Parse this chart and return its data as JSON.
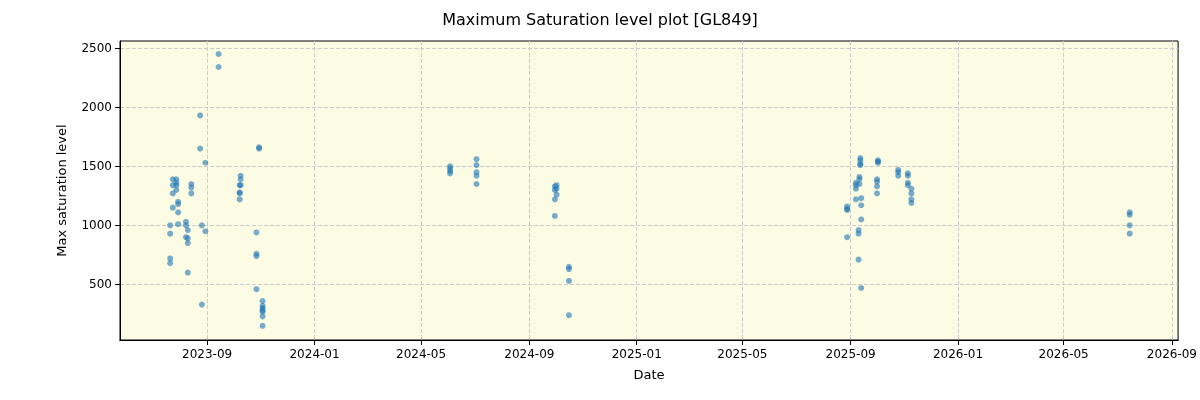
{
  "chart_data": {
    "type": "scatter",
    "title": "Maximum Saturation level plot [GL849]",
    "xlabel": "Date",
    "ylabel": "Max saturation level",
    "series": [
      {
        "color": "#1f77b4",
        "x": [
          "2023-09-14",
          "2023-09-14",
          "2023-08-24",
          "2023-08-24",
          "2023-08-30",
          "2023-07-24",
          "2023-07-24",
          "2023-07-24",
          "2023-07-24",
          "2023-07-28",
          "2023-07-28",
          "2023-07-28",
          "2023-07-28",
          "2023-08-14",
          "2023-08-14",
          "2023-08-14",
          "2023-07-30",
          "2023-07-30",
          "2023-07-30",
          "2023-07-30",
          "2023-07-21",
          "2023-07-21",
          "2023-07-21",
          "2023-07-21",
          "2023-08-08",
          "2023-08-08",
          "2023-08-08",
          "2023-08-10",
          "2023-08-10",
          "2023-08-10",
          "2023-08-10",
          "2023-08-26",
          "2023-08-26",
          "2023-08-30",
          "2023-10-30",
          "2023-10-30",
          "2023-10-09",
          "2023-10-09",
          "2023-10-09",
          "2023-10-08",
          "2023-10-08",
          "2023-10-08",
          "2023-10-08",
          "2023-10-27",
          "2023-10-27",
          "2023-10-27",
          "2023-10-27",
          "2023-11-03",
          "2023-11-03",
          "2023-11-03",
          "2023-11-03",
          "2023-11-03",
          "2023-11-03",
          "2023-11-03",
          "2024-06-03",
          "2024-06-03",
          "2024-06-03",
          "2024-06-03",
          "2024-07-03",
          "2024-07-03",
          "2024-07-03",
          "2024-07-03",
          "2024-07-03",
          "2024-10-02",
          "2024-09-30",
          "2024-10-02",
          "2024-09-30",
          "2024-10-02",
          "2024-09-30",
          "2024-09-30",
          "2024-10-16",
          "2024-10-16",
          "2024-10-16",
          "2024-10-16",
          "2025-09-12",
          "2025-09-12",
          "2025-09-12",
          "2025-09-12",
          "2025-10-02",
          "2025-10-02",
          "2025-10-02",
          "2025-09-11",
          "2025-09-11",
          "2025-09-07",
          "2025-09-11",
          "2025-09-07",
          "2025-09-07",
          "2025-09-07",
          "2025-09-13",
          "2025-09-13",
          "2025-09-13",
          "2025-08-28",
          "2025-08-28",
          "2025-08-28",
          "2025-08-28",
          "2025-09-10",
          "2025-09-10",
          "2025-09-10",
          "2025-09-13",
          "2025-10-01",
          "2025-10-01",
          "2025-10-01",
          "2025-10-01",
          "2025-10-25",
          "2025-10-25",
          "2025-10-25",
          "2025-11-05",
          "2025-11-05",
          "2025-11-05",
          "2025-11-05",
          "2025-11-09",
          "2025-11-09",
          "2025-11-09",
          "2025-11-09",
          "2026-07-15",
          "2026-07-15",
          "2026-07-15",
          "2026-07-15"
        ],
        "values": [
          2450,
          2340,
          1930,
          1650,
          1530,
          1390,
          1340,
          1270,
          1150,
          1390,
          1360,
          1340,
          1300,
          1350,
          1320,
          1270,
          1200,
          1180,
          1110,
          1010,
          1000,
          930,
          720,
          680,
          1030,
          1000,
          900,
          960,
          890,
          850,
          600,
          1000,
          330,
          950,
          1660,
          1650,
          1420,
          1390,
          1340,
          1340,
          1280,
          1270,
          1220,
          940,
          760,
          740,
          460,
          360,
          320,
          300,
          280,
          270,
          230,
          150,
          1500,
          1480,
          1460,
          1440,
          1560,
          1510,
          1450,
          1420,
          1350,
          1340,
          1330,
          1310,
          1300,
          1260,
          1220,
          1080,
          650,
          630,
          530,
          240,
          1570,
          1550,
          1520,
          1510,
          1550,
          1540,
          1530,
          1410,
          1390,
          1360,
          1350,
          1340,
          1310,
          1220,
          1230,
          1170,
          1050,
          1160,
          1140,
          1130,
          900,
          960,
          930,
          710,
          470,
          1390,
          1370,
          1330,
          1270,
          1470,
          1450,
          1420,
          1440,
          1420,
          1360,
          1340,
          1310,
          1270,
          1220,
          1190,
          1110,
          1090,
          1000,
          930
        ]
      }
    ],
    "xlim": [
      "2023-05-25",
      "2026-09-08"
    ],
    "xticks": [
      {
        "value": "2023-09-01",
        "label": "2023-09"
      },
      {
        "value": "2024-01-01",
        "label": "2024-01"
      },
      {
        "value": "2024-05-01",
        "label": "2024-05"
      },
      {
        "value": "2024-09-01",
        "label": "2024-09"
      },
      {
        "value": "2025-01-01",
        "label": "2025-01"
      },
      {
        "value": "2025-05-01",
        "label": "2025-05"
      },
      {
        "value": "2025-09-01",
        "label": "2025-09"
      },
      {
        "value": "2026-01-01",
        "label": "2026-01"
      },
      {
        "value": "2026-05-01",
        "label": "2026-05"
      },
      {
        "value": "2026-09-01",
        "label": "2026-09"
      }
    ],
    "ylim": [
      30,
      2560
    ],
    "yticks": [
      500,
      1000,
      1500,
      2000,
      2500
    ],
    "grid": true,
    "marker": "circle"
  }
}
